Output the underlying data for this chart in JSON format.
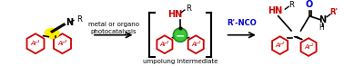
{
  "bg_color": "#ffffff",
  "ring_color": "#cc0000",
  "ring_lw": 1.3,
  "black": "#000000",
  "red": "#cc0000",
  "blue": "#0000cc",
  "yellow": "#ffee00",
  "green_face": "#33cc33",
  "green_edge": "#228822",
  "figsize": [
    3.78,
    0.73
  ],
  "dpi": 100,
  "label_arrow1_line1": "metal or organo",
  "label_arrow1_line2": "photocatalysis",
  "label_arrow2": "R'-NCO",
  "label_intermediate": "umpolung intermediate"
}
